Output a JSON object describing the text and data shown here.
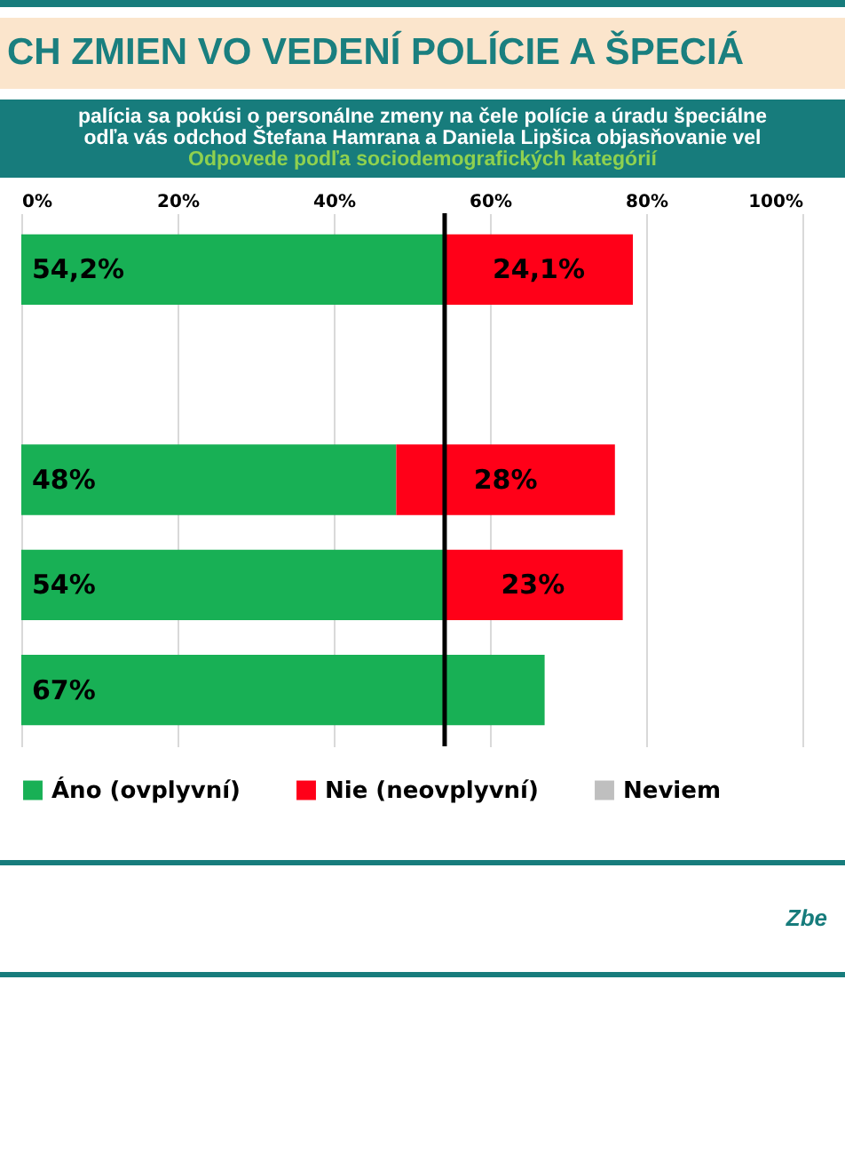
{
  "chart_data": {
    "type": "bar",
    "orientation": "horizontal",
    "stacked": true,
    "title": "CH ZMIEN VO VEDENÍ POLÍCIE A ŠPECIÁ",
    "subtitle": "palícia sa pokúsi o personálne zmeny na čele polície a úradu špeciálne\nodľa vás odchod Štefana Hamrana a Daniela Lipšica objasňovanie vel",
    "annotations": [
      "Odpovede podľa sociodemografických kategórií",
      "Zbe"
    ],
    "categories": [
      null,
      null,
      null,
      null,
      null
    ],
    "series": [
      {
        "name": "Áno (ovplyvní)",
        "color": "#18b055",
        "values": [
          54.2,
          null,
          48,
          54,
          67
        ],
        "value_labels": [
          "54,2%",
          null,
          "48%",
          "54%",
          "67%"
        ]
      },
      {
        "name": "Nie (neovplyvní)",
        "color": "#ff0018",
        "values": [
          24.1,
          null,
          28,
          23,
          null
        ],
        "value_labels": [
          "24,1%",
          null,
          "28%",
          "23%",
          null
        ]
      },
      {
        "name": "Neviem",
        "color": "#bfbfbf",
        "values": [
          null,
          null,
          null,
          null,
          null
        ]
      }
    ],
    "xlim": [
      0,
      100
    ],
    "xticks": [
      {
        "value": 0,
        "label": "0%"
      },
      {
        "value": 20,
        "label": "20%"
      },
      {
        "value": 40,
        "label": "40%"
      },
      {
        "value": 60,
        "label": "60%"
      },
      {
        "value": 80,
        "label": "80%"
      },
      {
        "value": 100,
        "label": "100%"
      }
    ],
    "grid": true,
    "legend": "bottom",
    "ref_lines": [
      {
        "axis": "x",
        "value": 54.2,
        "color": "#000000"
      }
    ]
  }
}
